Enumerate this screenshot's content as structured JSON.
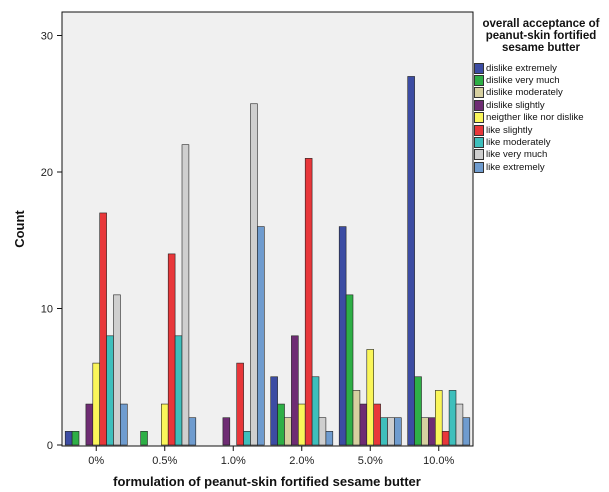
{
  "chart_data": {
    "type": "bar",
    "title": "",
    "xlabel": "formulation of peanut-skin fortified sesame butter",
    "ylabel": "Count",
    "ylim": [
      0,
      30
    ],
    "yticks": [
      0,
      10,
      20,
      30
    ],
    "categories": [
      "0%",
      "0.5%",
      "1.0%",
      "2.0%",
      "5.0%",
      "10.0%"
    ],
    "legend": {
      "title": "overall acceptance of peanut-skin fortified sesame butter",
      "placement": "right"
    },
    "grid": false,
    "series": [
      {
        "name": "dislike extremely",
        "color": "#3C4CA3",
        "values": [
          1,
          0,
          0,
          5,
          16,
          27
        ]
      },
      {
        "name": "dislike very much",
        "color": "#2EAF46",
        "values": [
          1,
          1,
          0,
          3,
          11,
          5
        ]
      },
      {
        "name": "dislike moderately",
        "color": "#D7D0A0",
        "values": [
          0,
          0,
          0,
          2,
          4,
          2
        ]
      },
      {
        "name": "dislike slightly",
        "color": "#6E2C73",
        "values": [
          3,
          0,
          2,
          8,
          3,
          2
        ]
      },
      {
        "name": "neigther like nor dislike",
        "color": "#FAF65A",
        "values": [
          6,
          3,
          0,
          3,
          7,
          4
        ]
      },
      {
        "name": "like slightly",
        "color": "#E8373A",
        "values": [
          17,
          14,
          6,
          21,
          3,
          1
        ]
      },
      {
        "name": "like moderately",
        "color": "#3EBFBC",
        "values": [
          8,
          8,
          1,
          5,
          2,
          4
        ]
      },
      {
        "name": "like very much",
        "color": "#CFCFCF",
        "values": [
          11,
          22,
          25,
          2,
          2,
          3
        ]
      },
      {
        "name": "like extremely",
        "color": "#6F9CCF",
        "values": [
          3,
          2,
          16,
          1,
          2,
          2
        ]
      }
    ]
  }
}
